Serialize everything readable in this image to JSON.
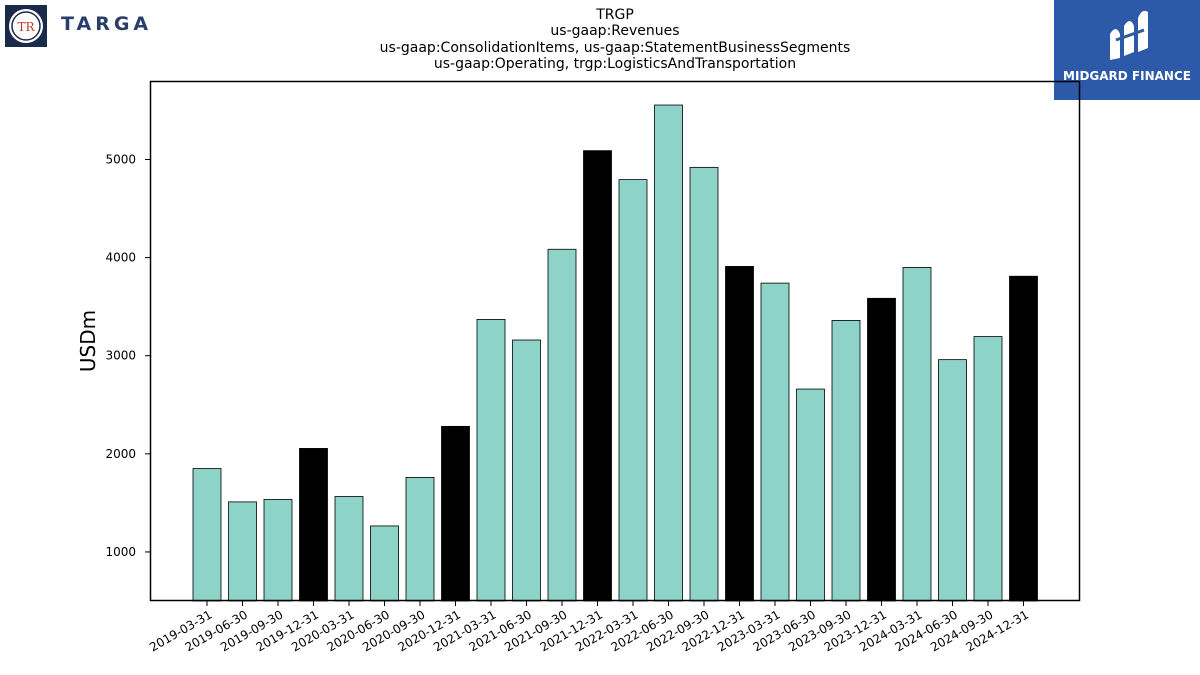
{
  "logos": {
    "left_seal_text": "TR",
    "left_brand": "TARGA",
    "right_brand": "MIDGARD FINANCE"
  },
  "colors": {
    "bar_regular": "#8dd3c7",
    "bar_year_end": "#000000",
    "midgard_blue": "#2d5aa8",
    "targa_navy": "#2b3e6b"
  },
  "chart_data": {
    "type": "bar",
    "title_lines": [
      "TRGP",
      "us-gaap:Revenues",
      "us-gaap:ConsolidationItems, us-gaap:StatementBusinessSegments",
      "us-gaap:Operating, trgp:LogisticsAndTransportation"
    ],
    "ylabel": "USDm",
    "xlabel": "",
    "ylim": [
      500,
      5800
    ],
    "yticks": [
      1000,
      2000,
      3000,
      4000,
      5000
    ],
    "grid": false,
    "categories": [
      "2019-03-31",
      "2019-06-30",
      "2019-09-30",
      "2019-12-31",
      "2020-03-31",
      "2020-06-30",
      "2020-09-30",
      "2020-12-31",
      "2021-03-31",
      "2021-06-30",
      "2021-09-30",
      "2021-12-31",
      "2022-03-31",
      "2022-06-30",
      "2022-09-30",
      "2022-12-31",
      "2023-03-31",
      "2023-06-30",
      "2023-09-30",
      "2023-12-31",
      "2024-03-31",
      "2024-06-30",
      "2024-09-30",
      "2024-12-31"
    ],
    "values": [
      1850,
      1510,
      1535,
      2055,
      1565,
      1265,
      1760,
      2280,
      3370,
      3160,
      4085,
      5090,
      4795,
      5555,
      4920,
      3910,
      3740,
      2660,
      3360,
      3585,
      3900,
      2960,
      3195,
      3810
    ],
    "highlight_year_end": [
      false,
      false,
      false,
      true,
      false,
      false,
      false,
      true,
      false,
      false,
      false,
      true,
      false,
      false,
      false,
      true,
      false,
      false,
      false,
      true,
      false,
      false,
      false,
      true
    ]
  }
}
